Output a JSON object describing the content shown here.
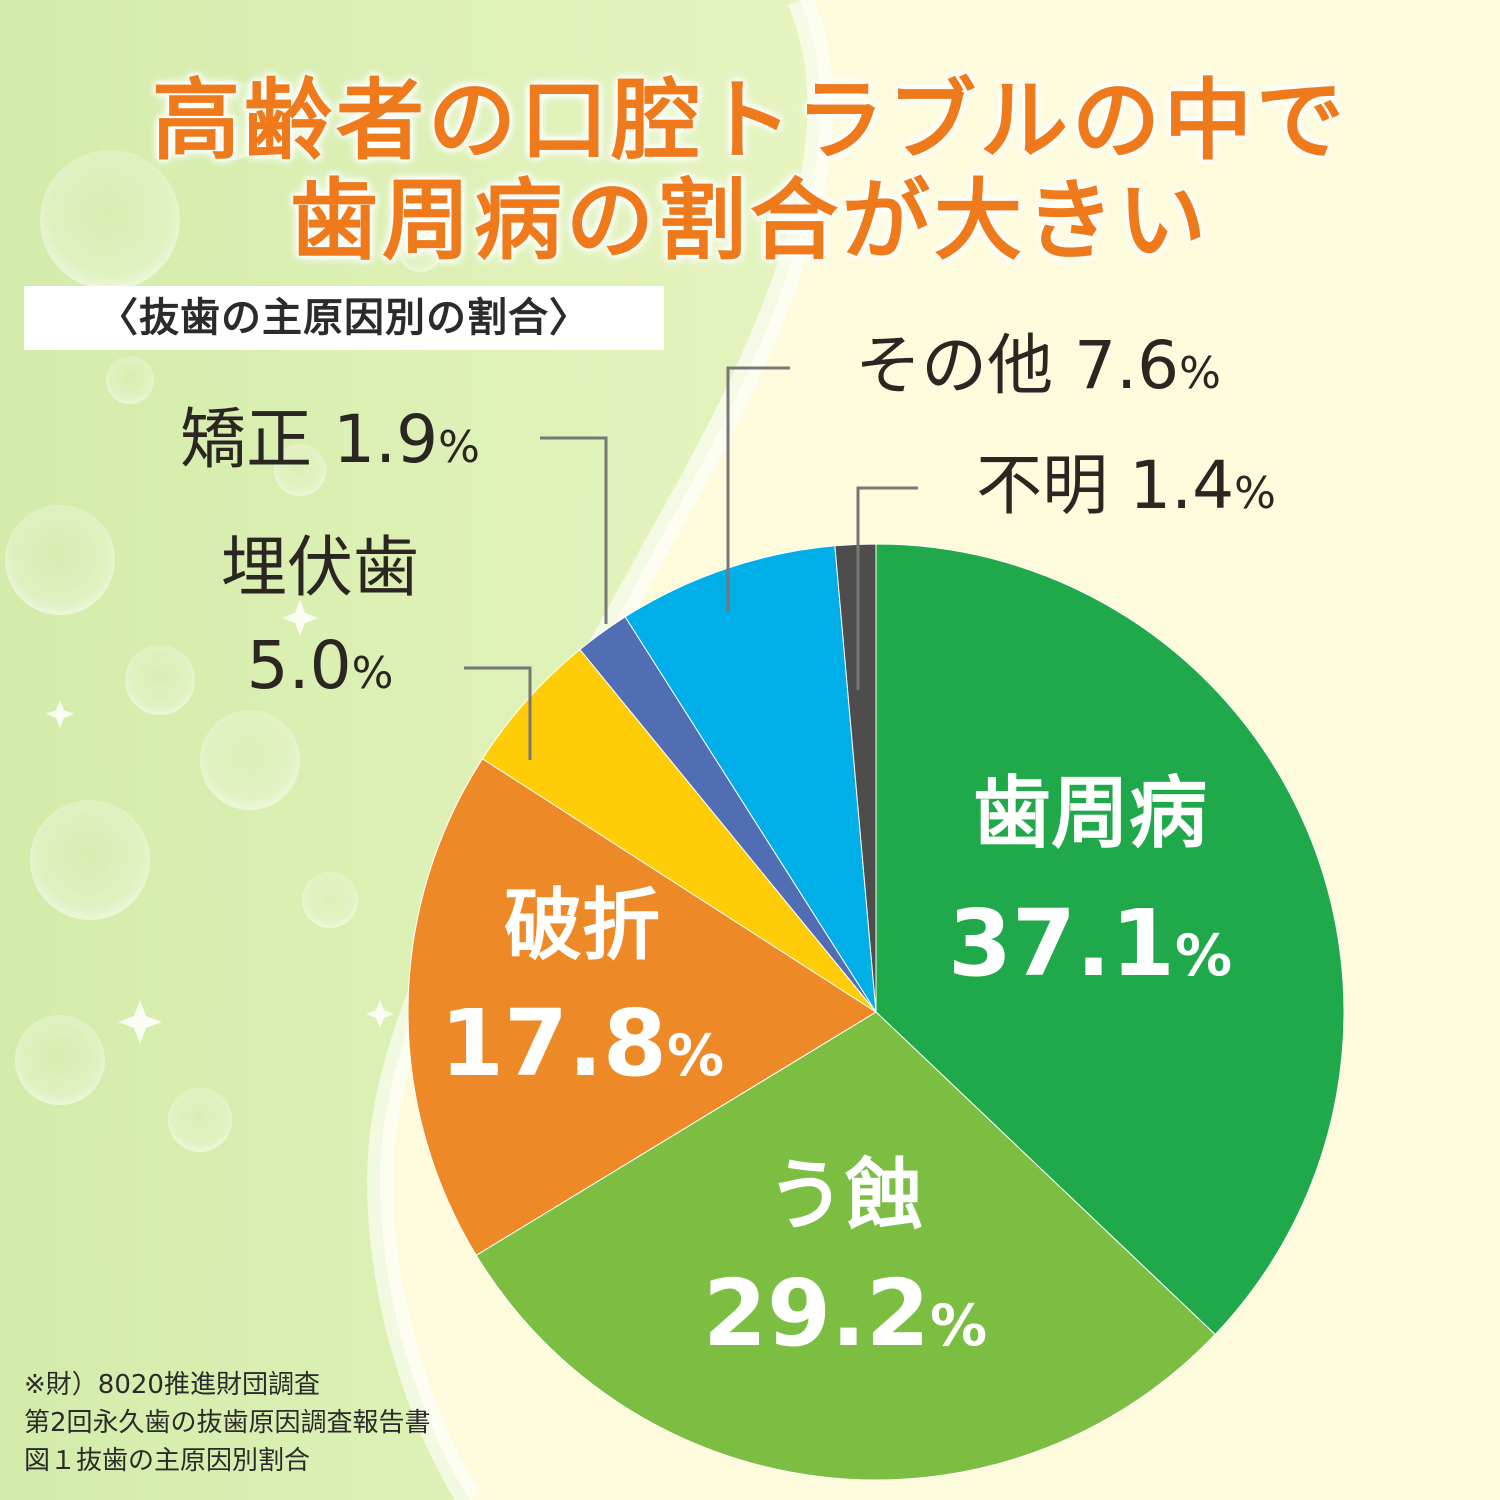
{
  "title": {
    "line1": "高齢者の口腔トラブルの中で",
    "line2": "歯周病の割合が大きい"
  },
  "subtitle": "〈抜歯の主原因別の割合〉",
  "chart_data": {
    "type": "pie",
    "title": "〈抜歯の主原因別の割合〉",
    "unit": "%",
    "slices": [
      {
        "name": "歯周病",
        "value": 37.1,
        "value_label": "37.1",
        "color": "#20a94a"
      },
      {
        "name": "う蝕",
        "value": 29.2,
        "value_label": "29.2",
        "color": "#7cbe42"
      },
      {
        "name": "破折",
        "value": 17.8,
        "value_label": "17.8",
        "color": "#ed8a27"
      },
      {
        "name": "埋伏歯",
        "value": 5.0,
        "value_label": "5.0",
        "color": "#fecd08"
      },
      {
        "name": "矯正",
        "value": 1.9,
        "value_label": "1.9",
        "color": "#516eb5"
      },
      {
        "name": "その他",
        "value": 7.6,
        "value_label": "7.6",
        "color": "#00aee8"
      },
      {
        "name": "不明",
        "value": 1.4,
        "value_label": "1.4",
        "color": "#4f4d4c"
      }
    ]
  },
  "source": {
    "line1": "※財）8020推進財団調査",
    "line2": "第2回永久歯の抜歯原因調査報告書",
    "line3": "図１抜歯の主原因別割合"
  }
}
